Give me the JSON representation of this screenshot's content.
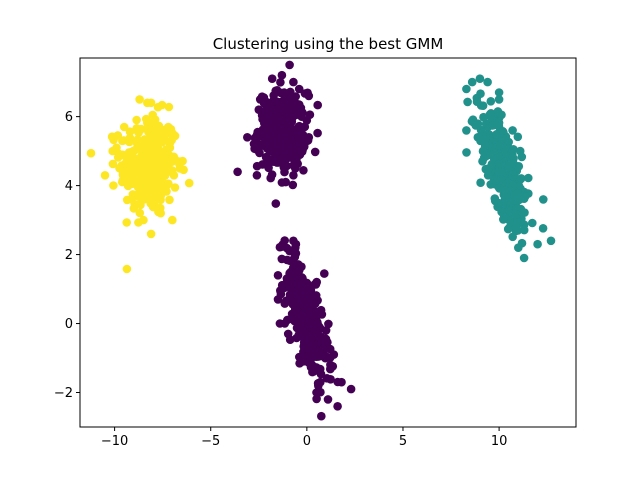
{
  "chart_data": {
    "type": "scatter",
    "title": "Clustering using the best GMM",
    "xlabel": "",
    "ylabel": "",
    "xlim": [
      -11.8,
      14.0
    ],
    "ylim": [
      -3.0,
      7.7
    ],
    "x_ticks": [
      -10,
      -5,
      0,
      5,
      10
    ],
    "x_tick_labels": [
      "−10",
      "−5",
      "0",
      "5",
      "10"
    ],
    "y_ticks": [
      -2,
      0,
      2,
      4,
      6
    ],
    "y_tick_labels": [
      "−2",
      "0",
      "2",
      "4",
      "6"
    ],
    "grid": false,
    "legend": "none",
    "clusters": [
      {
        "color": "#fde725",
        "center": [
          -8.2,
          4.6
        ],
        "spread": [
          0.75,
          0.72
        ],
        "correlation": 0.0,
        "n": 330,
        "points": [
          [
            -10.5,
            4.3
          ],
          [
            -10.1,
            5.0
          ],
          [
            -9.9,
            5.1
          ],
          [
            -9.6,
            5.3
          ],
          [
            -8.7,
            6.5
          ],
          [
            -8.3,
            6.4
          ],
          [
            -8.1,
            6.4
          ],
          [
            -8.1,
            2.6
          ],
          [
            -8.5,
            3.0
          ],
          [
            -7.6,
            3.2
          ],
          [
            -7.0,
            3.0
          ],
          [
            -6.6,
            4.7
          ],
          [
            -6.6,
            4.5
          ],
          [
            -7.2,
            5.6
          ],
          [
            -9.6,
            4.1
          ],
          [
            -9.5,
            5.7
          ]
        ]
      },
      {
        "color": "#440154",
        "center": [
          -1.3,
          5.6
        ],
        "spread": [
          0.62,
          0.55
        ],
        "correlation": 0.0,
        "n": 300,
        "points": [
          [
            -1.8,
            7.1
          ],
          [
            -1.3,
            7.2
          ],
          [
            -0.7,
            7.0
          ],
          [
            -0.9,
            7.5
          ],
          [
            0.1,
            6.6
          ],
          [
            0.1,
            5.4
          ],
          [
            -3.1,
            5.4
          ],
          [
            -3.6,
            4.4
          ],
          [
            -2.6,
            4.3
          ],
          [
            -1.1,
            4.1
          ],
          [
            -0.7,
            4.3
          ],
          [
            -0.6,
            4.5
          ],
          [
            -2.5,
            6.2
          ]
        ]
      },
      {
        "color": "#440154",
        "center": [
          0.0,
          0.1
        ],
        "spread": [
          0.55,
          0.88
        ],
        "correlation": -0.65,
        "n": 330,
        "points": [
          [
            -0.9,
            2.1
          ],
          [
            -0.6,
            2.2
          ],
          [
            -0.7,
            2.4
          ],
          [
            -1.5,
            1.4
          ],
          [
            -1.5,
            0.7
          ],
          [
            -1.4,
            0.0
          ],
          [
            1.0,
            -0.2
          ],
          [
            1.4,
            -0.9
          ],
          [
            1.8,
            -1.7
          ],
          [
            2.3,
            -1.9
          ],
          [
            1.6,
            -2.4
          ],
          [
            1.1,
            -2.2
          ],
          [
            0.5,
            -2.0
          ],
          [
            -0.2,
            -1.1
          ]
        ]
      },
      {
        "color": "#21918c",
        "center": [
          10.3,
          4.4
        ],
        "spread": [
          0.62,
          0.88
        ],
        "correlation": -0.68,
        "n": 330,
        "points": [
          [
            8.3,
            6.8
          ],
          [
            8.6,
            7.0
          ],
          [
            9.0,
            7.1
          ],
          [
            9.4,
            7.0
          ],
          [
            10.0,
            6.7
          ],
          [
            10.0,
            6.5
          ],
          [
            8.3,
            5.6
          ],
          [
            12.3,
            3.6
          ],
          [
            12.7,
            2.4
          ],
          [
            11.3,
            1.9
          ],
          [
            11.0,
            2.2
          ],
          [
            12.0,
            2.3
          ],
          [
            11.1,
            5.0
          ],
          [
            10.7,
            5.6
          ]
        ]
      }
    ]
  }
}
